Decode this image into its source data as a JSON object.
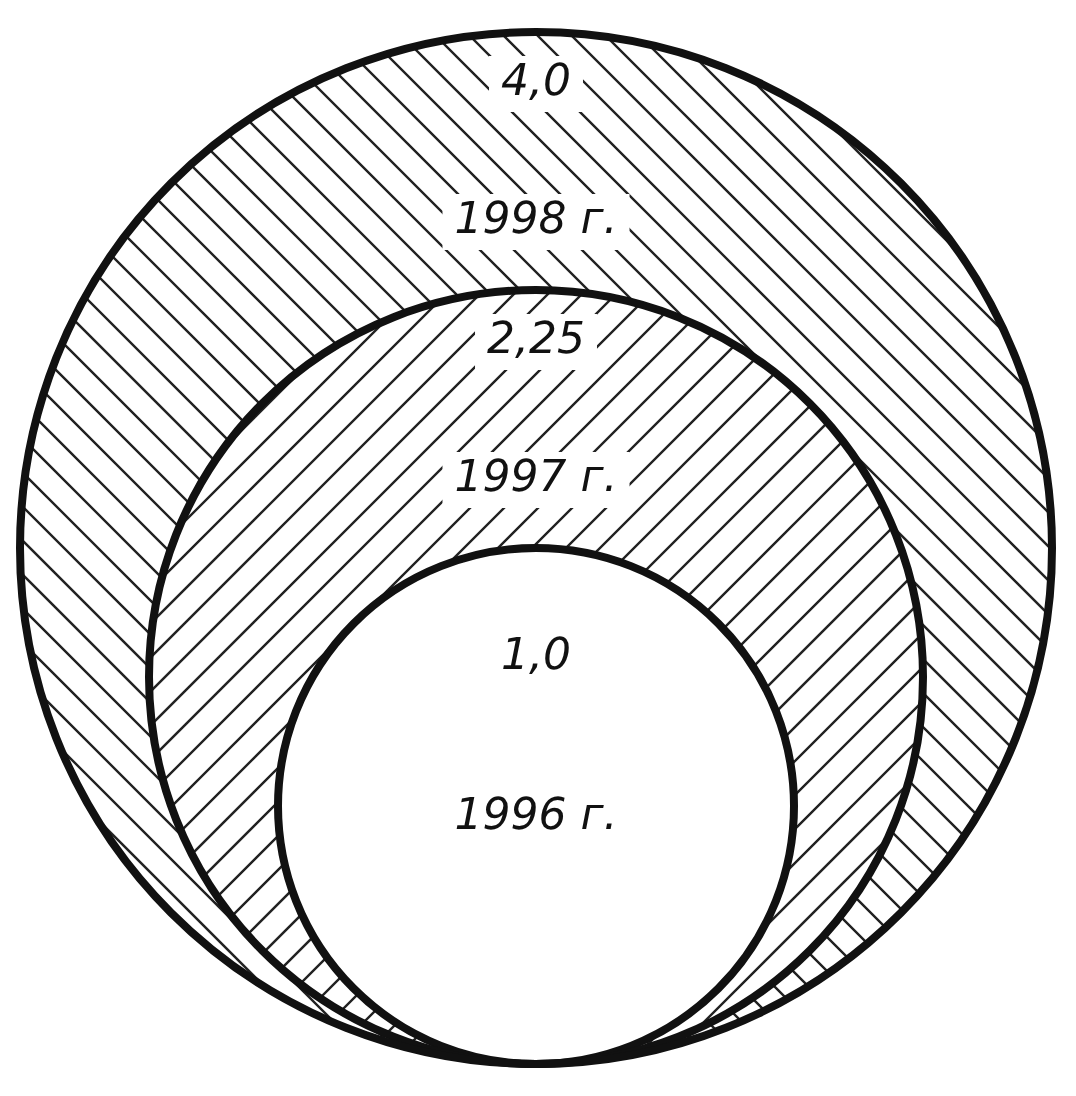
{
  "chart_data": {
    "type": "other",
    "categories": [
      "1996 г.",
      "1997 г.",
      "1998 г."
    ],
    "values": [
      1.0,
      2.25,
      4.0
    ],
    "value_labels": [
      "1,0",
      "2,25",
      "4,0"
    ]
  }
}
